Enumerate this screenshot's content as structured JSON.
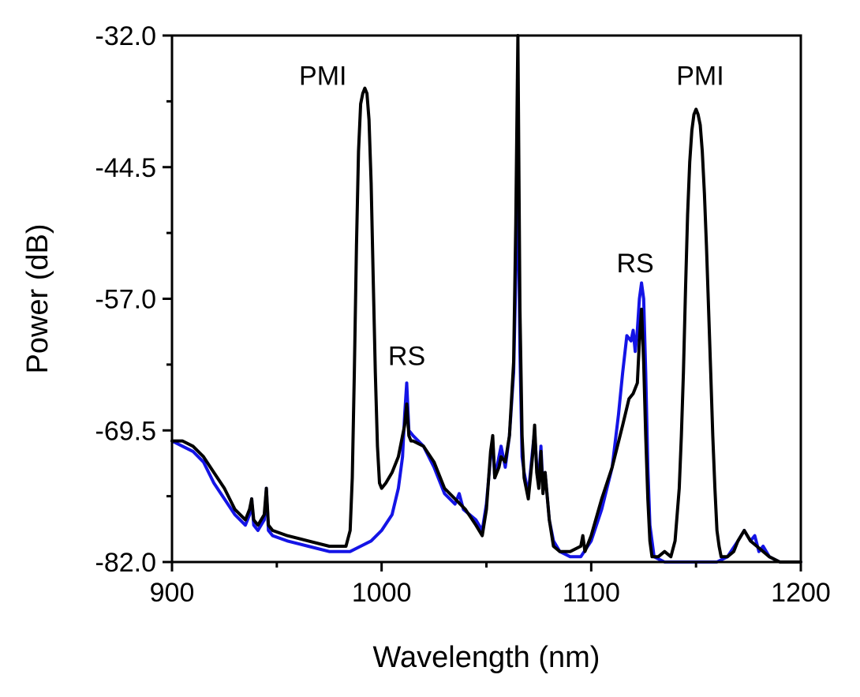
{
  "chart_data": {
    "type": "line",
    "title": "",
    "xlabel": "Wavelength (nm)",
    "ylabel": "Power (dB)",
    "xlim": [
      900,
      1200
    ],
    "ylim": [
      -82.0,
      -32.0
    ],
    "x_ticks": [
      900,
      1000,
      1100,
      1200
    ],
    "x_tick_labels": [
      "900",
      "1000",
      "1100",
      "1200"
    ],
    "y_ticks": [
      -82.0,
      -69.5,
      -57.0,
      -44.5,
      -32.0
    ],
    "y_tick_labels": [
      "-82.0",
      "-69.5",
      "-57.0",
      "-44.5",
      "-32.0"
    ],
    "grid": false,
    "series": [
      {
        "name": "blue trace",
        "color": "#1414e6",
        "x": [
          900,
          905,
          910,
          915,
          920,
          925,
          930,
          935,
          937,
          938,
          939,
          941,
          944,
          945,
          946,
          948,
          955,
          965,
          975,
          985,
          990,
          995,
          1000,
          1005,
          1008,
          1010,
          1011,
          1012,
          1013,
          1015,
          1020,
          1025,
          1030,
          1035,
          1037,
          1039,
          1045,
          1048,
          1050,
          1052,
          1053,
          1054,
          1056,
          1057,
          1059,
          1061,
          1063,
          1064,
          1065,
          1066,
          1067,
          1068,
          1070,
          1072,
          1073,
          1074,
          1075,
          1076,
          1077,
          1078,
          1080,
          1082,
          1085,
          1090,
          1095,
          1100,
          1105,
          1110,
          1113,
          1115,
          1117,
          1119,
          1120,
          1121,
          1122,
          1123,
          1124,
          1125,
          1126,
          1127,
          1128,
          1130,
          1135,
          1140,
          1145,
          1150,
          1155,
          1160,
          1165,
          1170,
          1173,
          1176,
          1178,
          1180,
          1182,
          1185,
          1190,
          1195,
          1200
        ],
        "values": [
          -70.5,
          -71.0,
          -71.5,
          -72.5,
          -74.5,
          -76.0,
          -77.5,
          -78.5,
          -77.5,
          -76.0,
          -78.5,
          -79.0,
          -78.0,
          -75.0,
          -79.0,
          -79.5,
          -80.0,
          -80.5,
          -81.0,
          -81.0,
          -80.5,
          -80.0,
          -79.0,
          -77.5,
          -75.0,
          -72.0,
          -68.0,
          -65.0,
          -69.5,
          -70.0,
          -71.0,
          -73.0,
          -75.5,
          -76.5,
          -75.5,
          -77.0,
          -78.0,
          -79.0,
          -76.5,
          -72.0,
          -70.5,
          -74.0,
          -72.0,
          -71.0,
          -73.0,
          -70.0,
          -64.0,
          -55.0,
          -44.0,
          -62.0,
          -72.0,
          -73.5,
          -75.5,
          -71.5,
          -69.5,
          -73.0,
          -74.0,
          -71.0,
          -75.0,
          -73.5,
          -78.0,
          -80.0,
          -81.0,
          -81.5,
          -81.5,
          -80.0,
          -77.0,
          -73.0,
          -68.0,
          -64.0,
          -60.5,
          -61.0,
          -60.0,
          -62.0,
          -60.0,
          -57.0,
          -55.5,
          -57.0,
          -64.0,
          -73.0,
          -78.5,
          -81.5,
          -82.0,
          -82.0,
          -82.0,
          -82.0,
          -82.0,
          -82.0,
          -81.5,
          -80.0,
          -79.0,
          -80.0,
          -79.5,
          -81.0,
          -80.5,
          -81.5,
          -82.0,
          -82.0,
          -82.0
        ]
      },
      {
        "name": "black trace",
        "color": "#000000",
        "x": [
          900,
          905,
          910,
          915,
          920,
          925,
          930,
          935,
          937,
          938,
          939,
          941,
          944,
          945,
          946,
          948,
          955,
          965,
          975,
          983,
          985,
          986,
          987,
          988,
          989,
          990,
          991,
          992,
          993,
          994,
          995,
          996,
          997,
          998,
          999,
          1000,
          1002,
          1005,
          1008,
          1010,
          1011,
          1012,
          1013,
          1014,
          1015,
          1020,
          1025,
          1030,
          1035,
          1040,
          1045,
          1048,
          1050,
          1052,
          1053,
          1054,
          1056,
          1057,
          1059,
          1061,
          1063,
          1064,
          1065,
          1066,
          1067,
          1068,
          1070,
          1072,
          1073,
          1074,
          1075,
          1076,
          1077,
          1078,
          1080,
          1082,
          1085,
          1090,
          1095,
          1096,
          1097,
          1100,
          1105,
          1110,
          1115,
          1118,
          1120,
          1122,
          1123,
          1124,
          1125,
          1126,
          1127,
          1128,
          1129,
          1130,
          1132,
          1135,
          1138,
          1140,
          1142,
          1143,
          1144,
          1145,
          1146,
          1147,
          1148,
          1149,
          1150,
          1151,
          1152,
          1153,
          1154,
          1155,
          1156,
          1157,
          1158,
          1159,
          1160,
          1161,
          1162,
          1163,
          1165,
          1168,
          1170,
          1173,
          1176,
          1179,
          1182,
          1185,
          1190,
          1195,
          1200
        ],
        "values": [
          -70.5,
          -70.5,
          -71.0,
          -72.0,
          -73.5,
          -75.0,
          -77.0,
          -78.0,
          -77.0,
          -76.0,
          -78.0,
          -78.5,
          -77.5,
          -75.0,
          -78.5,
          -79.0,
          -79.5,
          -80.0,
          -80.5,
          -80.5,
          -79.0,
          -74.0,
          -64.0,
          -52.0,
          -43.0,
          -38.5,
          -37.5,
          -37.0,
          -37.5,
          -40.0,
          -46.0,
          -55.0,
          -64.0,
          -71.0,
          -74.5,
          -75.0,
          -74.5,
          -73.5,
          -72.0,
          -70.0,
          -69.0,
          -67.0,
          -70.0,
          -70.5,
          -70.5,
          -71.0,
          -72.5,
          -75.0,
          -76.0,
          -77.0,
          -78.5,
          -79.5,
          -77.0,
          -71.5,
          -70.0,
          -74.0,
          -73.0,
          -72.0,
          -72.5,
          -70.0,
          -63.0,
          -50.0,
          -32.0,
          -58.0,
          -70.0,
          -74.0,
          -76.0,
          -72.0,
          -69.0,
          -73.5,
          -75.0,
          -71.5,
          -75.5,
          -73.5,
          -78.0,
          -80.5,
          -81.0,
          -81.0,
          -80.5,
          -79.5,
          -81.0,
          -79.5,
          -76.0,
          -73.0,
          -69.0,
          -66.5,
          -66.0,
          -65.0,
          -61.0,
          -58.0,
          -63.0,
          -70.0,
          -76.0,
          -80.0,
          -81.5,
          -81.5,
          -81.5,
          -81.0,
          -81.5,
          -80.0,
          -75.0,
          -70.0,
          -64.0,
          -56.0,
          -49.0,
          -44.0,
          -41.0,
          -39.5,
          -39.0,
          -39.5,
          -40.5,
          -43.0,
          -47.0,
          -52.0,
          -58.0,
          -64.0,
          -70.0,
          -75.0,
          -79.0,
          -80.5,
          -81.5,
          -81.5,
          -81.5,
          -81.0,
          -80.0,
          -79.0,
          -80.0,
          -80.5,
          -81.0,
          -81.5,
          -82.0,
          -82.0,
          -82.0
        ]
      }
    ],
    "annotations": [
      {
        "text": "PMI",
        "x": 972,
        "y": -36.7
      },
      {
        "text": "RS",
        "x": 1012,
        "y": -63.3
      },
      {
        "text": "RS",
        "x": 1121,
        "y": -54.5
      },
      {
        "text": "PMI",
        "x": 1152,
        "y": -36.7
      }
    ]
  }
}
